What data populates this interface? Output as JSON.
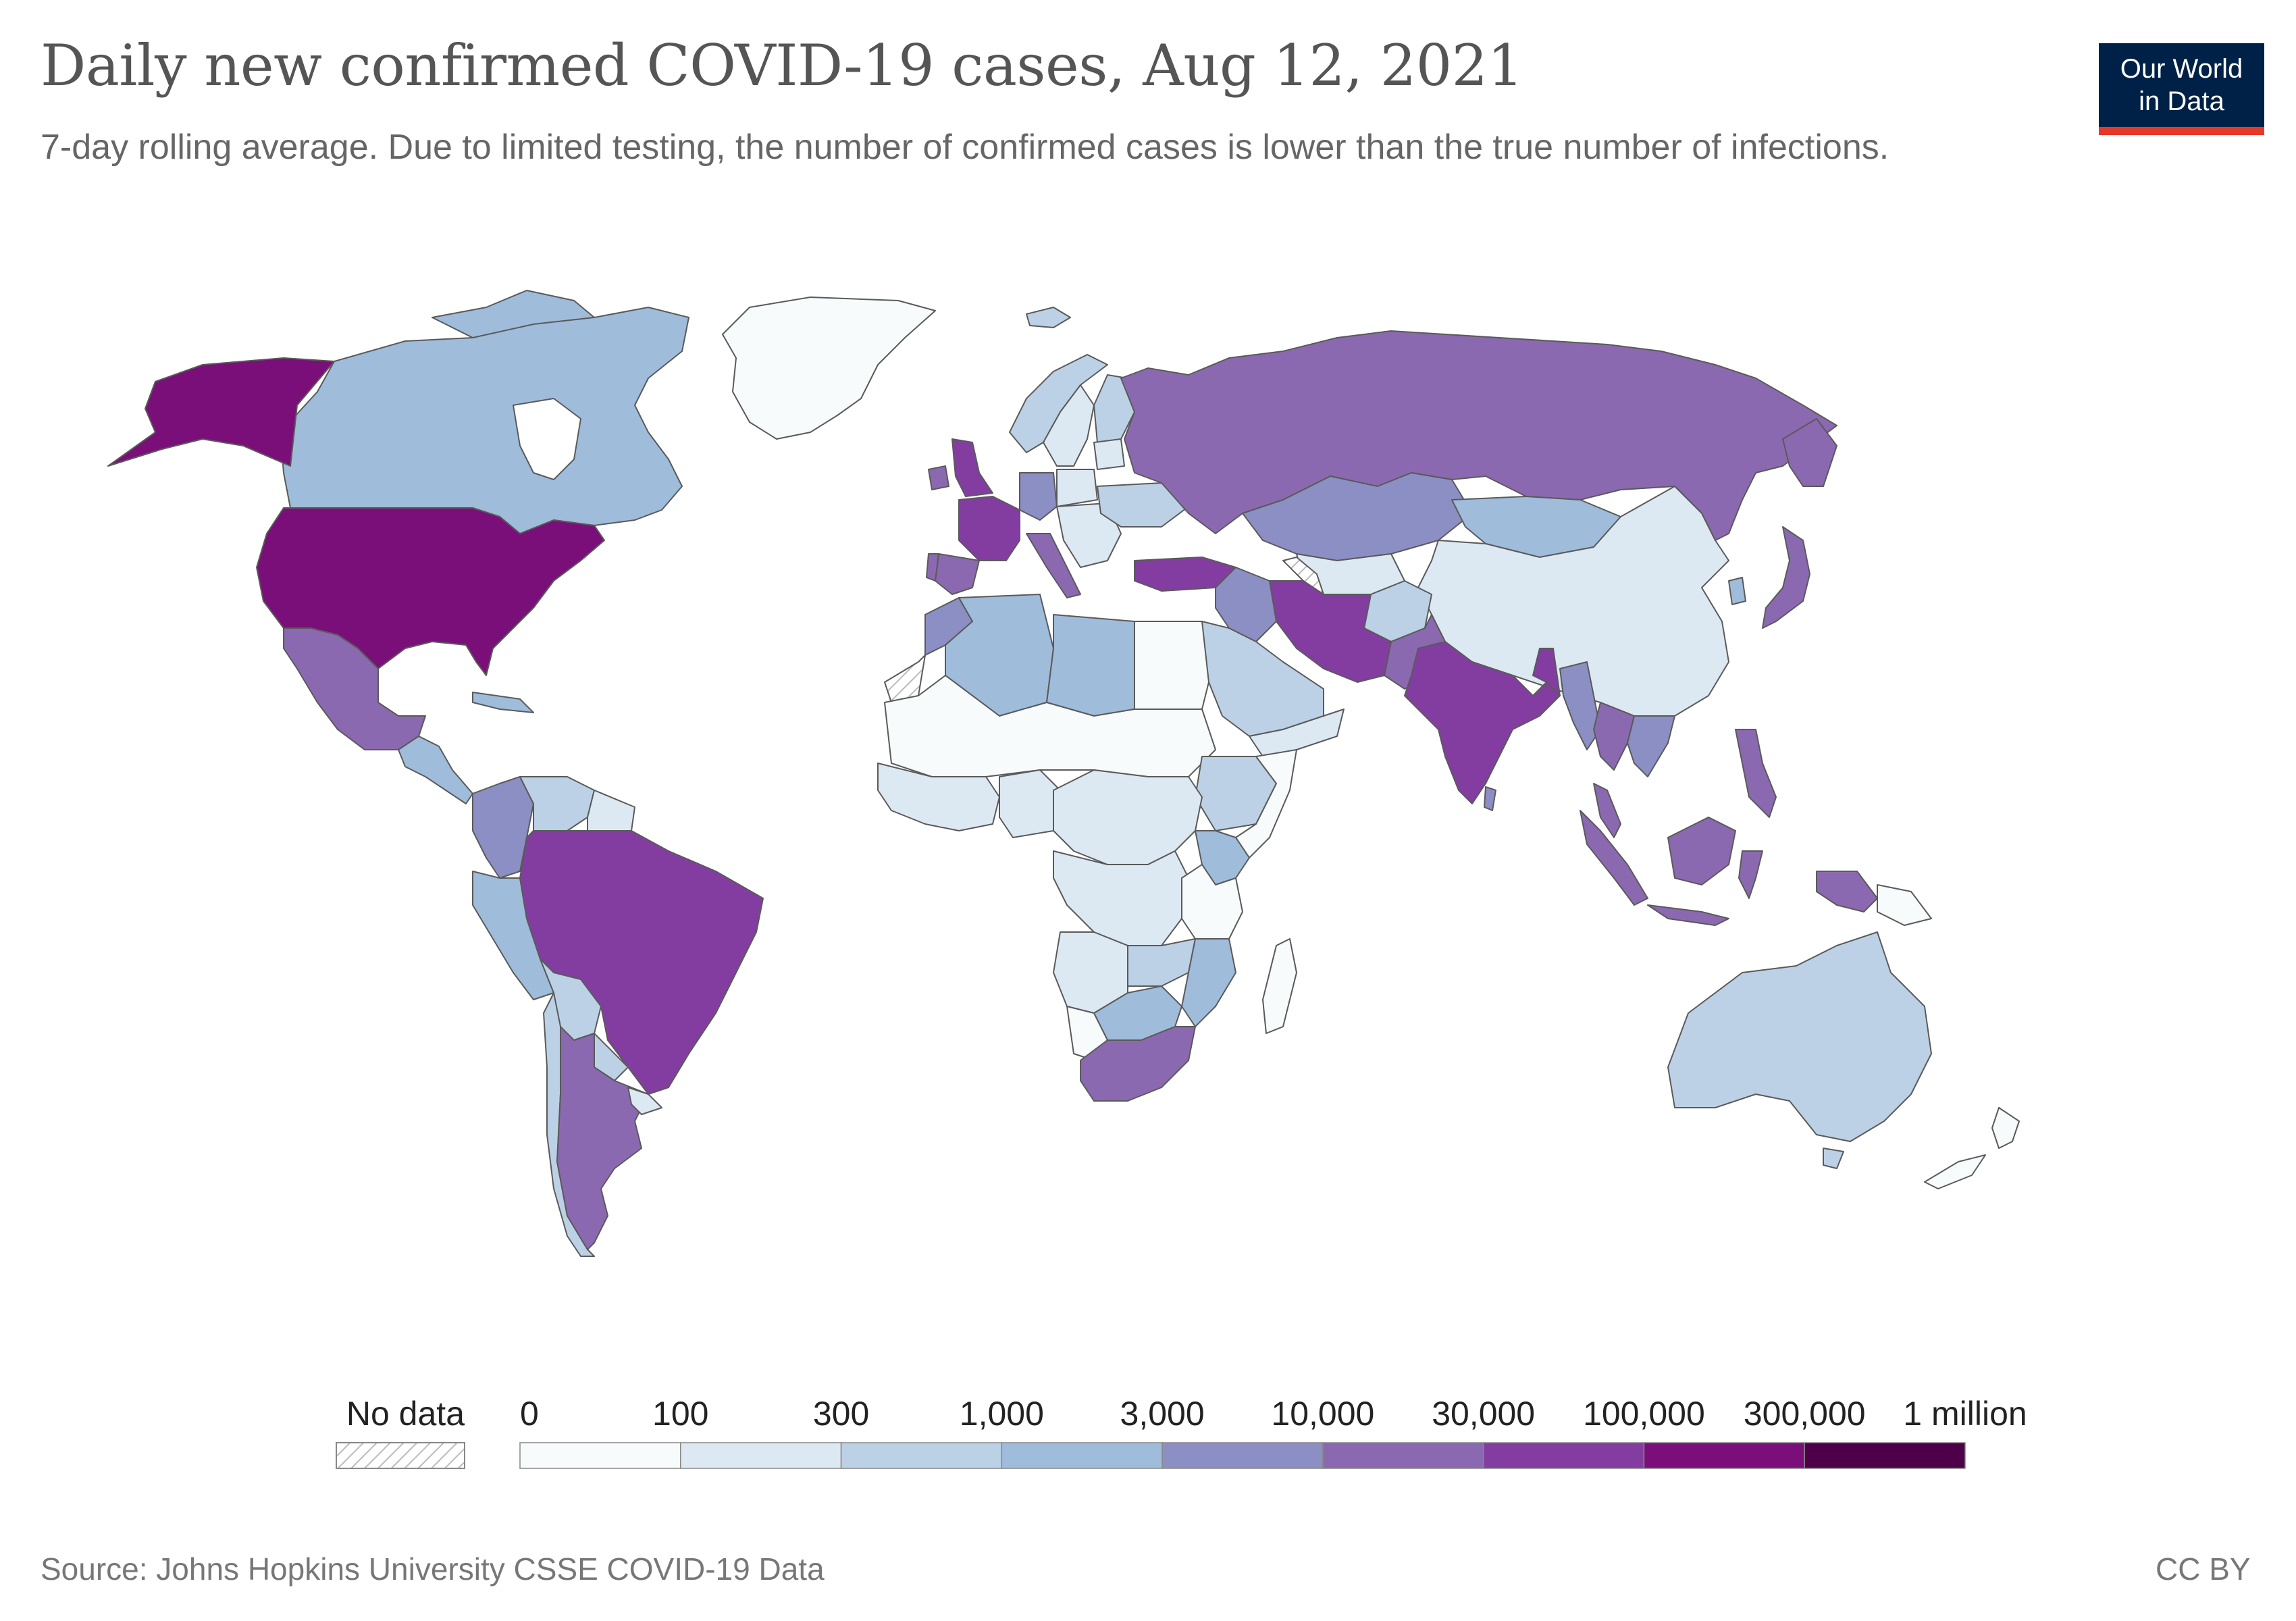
{
  "header": {
    "title": "Daily new confirmed COVID-19 cases, Aug 12, 2021",
    "subtitle": "7-day rolling average. Due to limited testing, the number of confirmed cases is lower than the true number of infections."
  },
  "logo": {
    "line1": "Our World",
    "line2": "in Data"
  },
  "legend": {
    "no_data_label": "No data",
    "bins": [
      {
        "label": "0",
        "color": "#f7fbfc"
      },
      {
        "label": "100",
        "color": "#dde9f2"
      },
      {
        "label": "300",
        "color": "#bcd1e6"
      },
      {
        "label": "1,000",
        "color": "#9fbcdb"
      },
      {
        "label": "3,000",
        "color": "#8c8fc4"
      },
      {
        "label": "10,000",
        "color": "#8b69b0"
      },
      {
        "label": "30,000",
        "color": "#833da1"
      },
      {
        "label": "100,000",
        "color": "#7a0f7a"
      },
      {
        "label": "300,000",
        "color": "#4d0048"
      }
    ],
    "end_label": "1 million"
  },
  "footer": {
    "source": "Source: Johns Hopkins University CSSE COVID-19 Data",
    "license": "CC BY"
  },
  "colors": {
    "land_border": "#5a5a5a",
    "logo_bg": "#002147",
    "logo_accent": "#e63828"
  }
}
